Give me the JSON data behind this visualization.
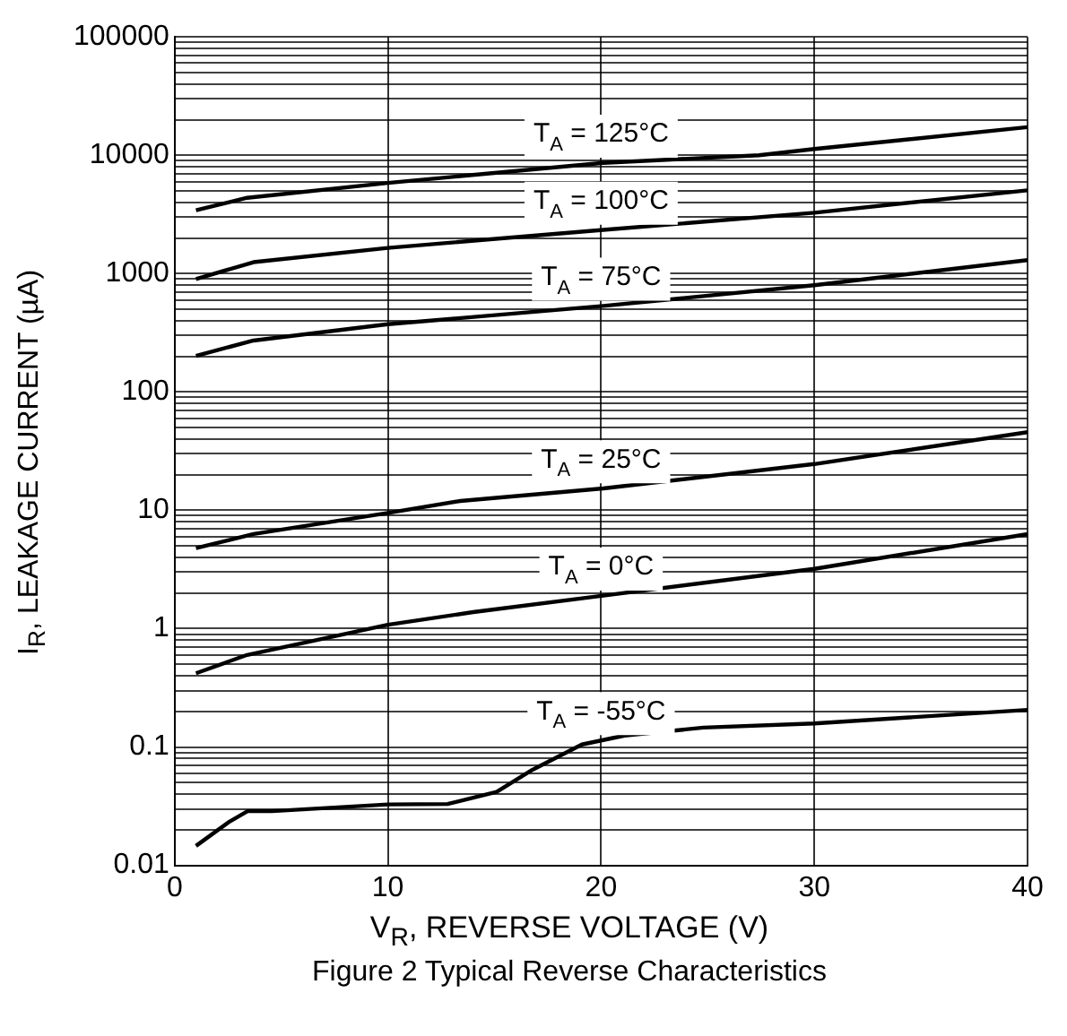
{
  "chart_data": {
    "type": "line",
    "xlabel": "V$_{R}$, REVERSE VOLTAGE (V)",
    "ylabel": "I$_{R}$, LEAKAGE CURRENT (µA)",
    "annotations": [
      "Figure 2 Typical Reverse Characteristics"
    ],
    "series": [
      {
        "name": "T$_{A}$ = 125°C",
        "color": "#000000",
        "x": [
          1,
          3.4,
          10,
          20.1,
          27.4,
          30,
          40
        ],
        "values": [
          3430,
          4370,
          5840,
          8630,
          10000,
          11300,
          17300
        ]
      },
      {
        "name": "T$_{A}$ = 100°C",
        "color": "#000000",
        "x": [
          1,
          3.7,
          10,
          20.1,
          30,
          40
        ],
        "values": [
          900,
          1250,
          1650,
          2340,
          3270,
          5060
        ]
      },
      {
        "name": "T$_{A}$ = 75°C",
        "color": "#000000",
        "x": [
          1,
          3.7,
          10,
          20.1,
          30,
          40
        ],
        "values": [
          202,
          272,
          374,
          533,
          798,
          1300
        ]
      },
      {
        "name": "T$_{A}$ = 25°C",
        "color": "#000000",
        "x": [
          1,
          3.7,
          10,
          13.4,
          20.1,
          30,
          40
        ],
        "values": [
          4.8,
          6.3,
          9.5,
          12,
          15.3,
          24.6,
          45.7
        ]
      },
      {
        "name": "T$_{A}$ = 0°C",
        "color": "#000000",
        "x": [
          1,
          3.4,
          10,
          14,
          20.1,
          30,
          40
        ],
        "values": [
          0.42,
          0.6,
          1.08,
          1.38,
          1.9,
          3.2,
          6.3
        ]
      },
      {
        "name": "T$_{A}$ = -55°C",
        "color": "#000000",
        "x": [
          1,
          2.57,
          3.42,
          4.56,
          10,
          12.8,
          15.1,
          16.8,
          19.1,
          21.1,
          24.8,
          30,
          40
        ],
        "values": [
          0.0146,
          0.0234,
          0.0287,
          0.0287,
          0.0327,
          0.033,
          0.0417,
          0.0645,
          0.105,
          0.125,
          0.146,
          0.158,
          0.206
        ]
      }
    ],
    "log": "y",
    "xlim": [
      0,
      40
    ],
    "xticks": [
      0,
      10,
      20,
      30,
      40
    ],
    "ylim": [
      0.01,
      100000
    ],
    "yticks": [
      0.01,
      {
        "value": 0.02,
        "label": null
      },
      {
        "value": 0.03,
        "label": null
      },
      {
        "value": 0.04,
        "label": null
      },
      {
        "value": 0.05,
        "label": null
      },
      {
        "value": 0.06,
        "label": null
      },
      {
        "value": 0.07,
        "label": null
      },
      {
        "value": 0.08,
        "label": null
      },
      {
        "value": 0.09,
        "label": null
      },
      0.1,
      {
        "value": 0.2,
        "label": null
      },
      {
        "value": 0.3,
        "label": null
      },
      {
        "value": 0.4,
        "label": null
      },
      {
        "value": 0.5,
        "label": null
      },
      {
        "value": 0.6,
        "label": null
      },
      {
        "value": 0.7,
        "label": null
      },
      {
        "value": 0.8,
        "label": null
      },
      {
        "value": 0.9,
        "label": null
      },
      1,
      {
        "value": 2,
        "label": null
      },
      {
        "value": 3,
        "label": null
      },
      {
        "value": 4,
        "label": null
      },
      {
        "value": 5,
        "label": null
      },
      {
        "value": 6,
        "label": null
      },
      {
        "value": 7,
        "label": null
      },
      {
        "value": 8,
        "label": null
      },
      {
        "value": 9,
        "label": null
      },
      10,
      {
        "value": 20,
        "label": null
      },
      {
        "value": 30,
        "label": null
      },
      {
        "value": 40,
        "label": null
      },
      {
        "value": 50,
        "label": null
      },
      {
        "value": 60,
        "label": null
      },
      {
        "value": 70,
        "label": null
      },
      {
        "value": 80,
        "label": null
      },
      {
        "value": 90,
        "label": null
      },
      100,
      {
        "value": 200,
        "label": null
      },
      {
        "value": 300,
        "label": null
      },
      {
        "value": 400,
        "label": null
      },
      {
        "value": 500,
        "label": null
      },
      {
        "value": 600,
        "label": null
      },
      {
        "value": 700,
        "label": null
      },
      {
        "value": 800,
        "label": null
      },
      {
        "value": 900,
        "label": null
      },
      1000,
      {
        "value": 2000,
        "label": null
      },
      {
        "value": 3000,
        "label": null
      },
      {
        "value": 4000,
        "label": null
      },
      {
        "value": 5000,
        "label": null
      },
      {
        "value": 6000,
        "label": null
      },
      {
        "value": 7000,
        "label": null
      },
      {
        "value": 8000,
        "label": null
      },
      {
        "value": 9000,
        "label": null
      },
      10000,
      {
        "value": 20000,
        "label": null
      },
      {
        "value": 30000,
        "label": null
      },
      {
        "value": 40000,
        "label": null
      },
      {
        "value": 50000,
        "label": null
      },
      {
        "value": 60000,
        "label": null
      },
      {
        "value": 70000,
        "label": null
      },
      {
        "value": 80000,
        "label": null
      },
      {
        "value": 90000,
        "label": null
      },
      100000
    ],
    "grid": true,
    "legend": false,
    "marker": "none",
    "line_style": "solid"
  }
}
